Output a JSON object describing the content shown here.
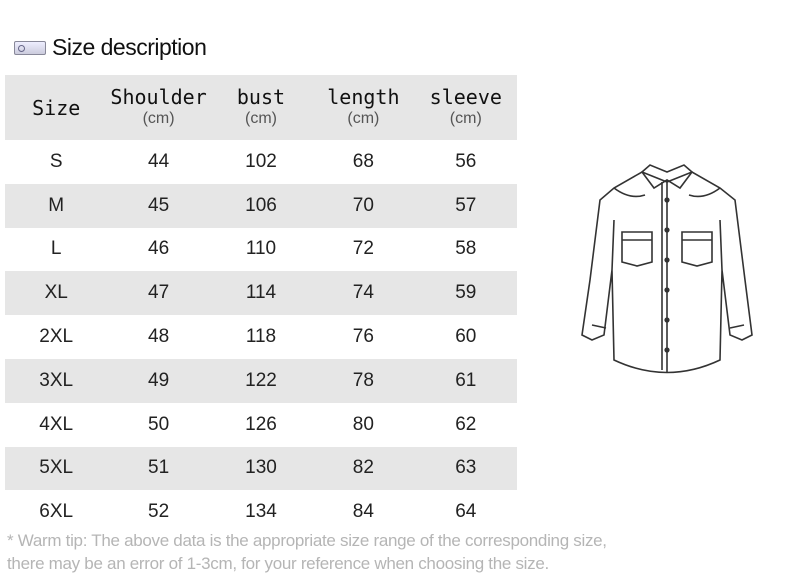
{
  "title": "Size description",
  "icon": "tag-icon",
  "headers": [
    {
      "label": "Size",
      "unit": ""
    },
    {
      "label": "Shoulder",
      "unit": "(cm)"
    },
    {
      "label": "bust",
      "unit": "(cm)"
    },
    {
      "label": "length",
      "unit": "(cm)"
    },
    {
      "label": "sleeve",
      "unit": "(cm)"
    }
  ],
  "rows": [
    [
      "S",
      "44",
      "102",
      "68",
      "56"
    ],
    [
      "M",
      "45",
      "106",
      "70",
      "57"
    ],
    [
      "L",
      "46",
      "110",
      "72",
      "58"
    ],
    [
      "XL",
      "47",
      "114",
      "74",
      "59"
    ],
    [
      "2XL",
      "48",
      "118",
      "76",
      "60"
    ],
    [
      "3XL",
      "49",
      "122",
      "78",
      "61"
    ],
    [
      "4XL",
      "50",
      "126",
      "80",
      "62"
    ],
    [
      "5XL",
      "51",
      "130",
      "82",
      "63"
    ],
    [
      "6XL",
      "52",
      "134",
      "84",
      "64"
    ]
  ],
  "tip": [
    "* Warm tip: The above data is the appropriate size range of the corresponding size,",
    "there may be an error of 1-3cm, for your reference when choosing the size."
  ]
}
